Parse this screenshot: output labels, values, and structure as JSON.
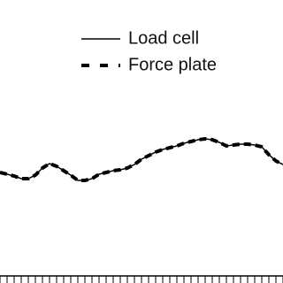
{
  "chart_data": {
    "type": "line",
    "categories": [
      null,
      null,
      null,
      null,
      null,
      null,
      null,
      null,
      null,
      null,
      null,
      null,
      null,
      null,
      null,
      null,
      null,
      null,
      null,
      null,
      null,
      null,
      null,
      null,
      null,
      null,
      null,
      null,
      null,
      null,
      null,
      null,
      null,
      null,
      null,
      null,
      null,
      null,
      null,
      null,
      null
    ],
    "series": [
      {
        "name": "Load cell",
        "color": "#000000",
        "style": "solid",
        "values": [
          52.5,
          51.5,
          50.5,
          49,
          49,
          51,
          55,
          57.5,
          56,
          53.5,
          51,
          48,
          48,
          49,
          51.5,
          52.5,
          53.5,
          54,
          55,
          57,
          60,
          62,
          64,
          65.5,
          66.5,
          67.5,
          69,
          70,
          71,
          71.5,
          71,
          69.5,
          67.5,
          68,
          68.5,
          68.5,
          68,
          67,
          62.5,
          59,
          57
        ]
      },
      {
        "name": "Force plate",
        "color": "#000000",
        "style": "dashed",
        "values": [
          52.5,
          51.5,
          50.5,
          49,
          49,
          51,
          55,
          57.5,
          56,
          53.5,
          51,
          48,
          48,
          49,
          51.5,
          52.5,
          53.5,
          54,
          55,
          57,
          60,
          62,
          64,
          65.5,
          66.5,
          67.5,
          69,
          70,
          71,
          71.5,
          71,
          69.5,
          67.5,
          68,
          68.5,
          68.5,
          68,
          67,
          62.5,
          59,
          57
        ]
      }
    ],
    "ylim": [
      0,
      100
    ]
  }
}
